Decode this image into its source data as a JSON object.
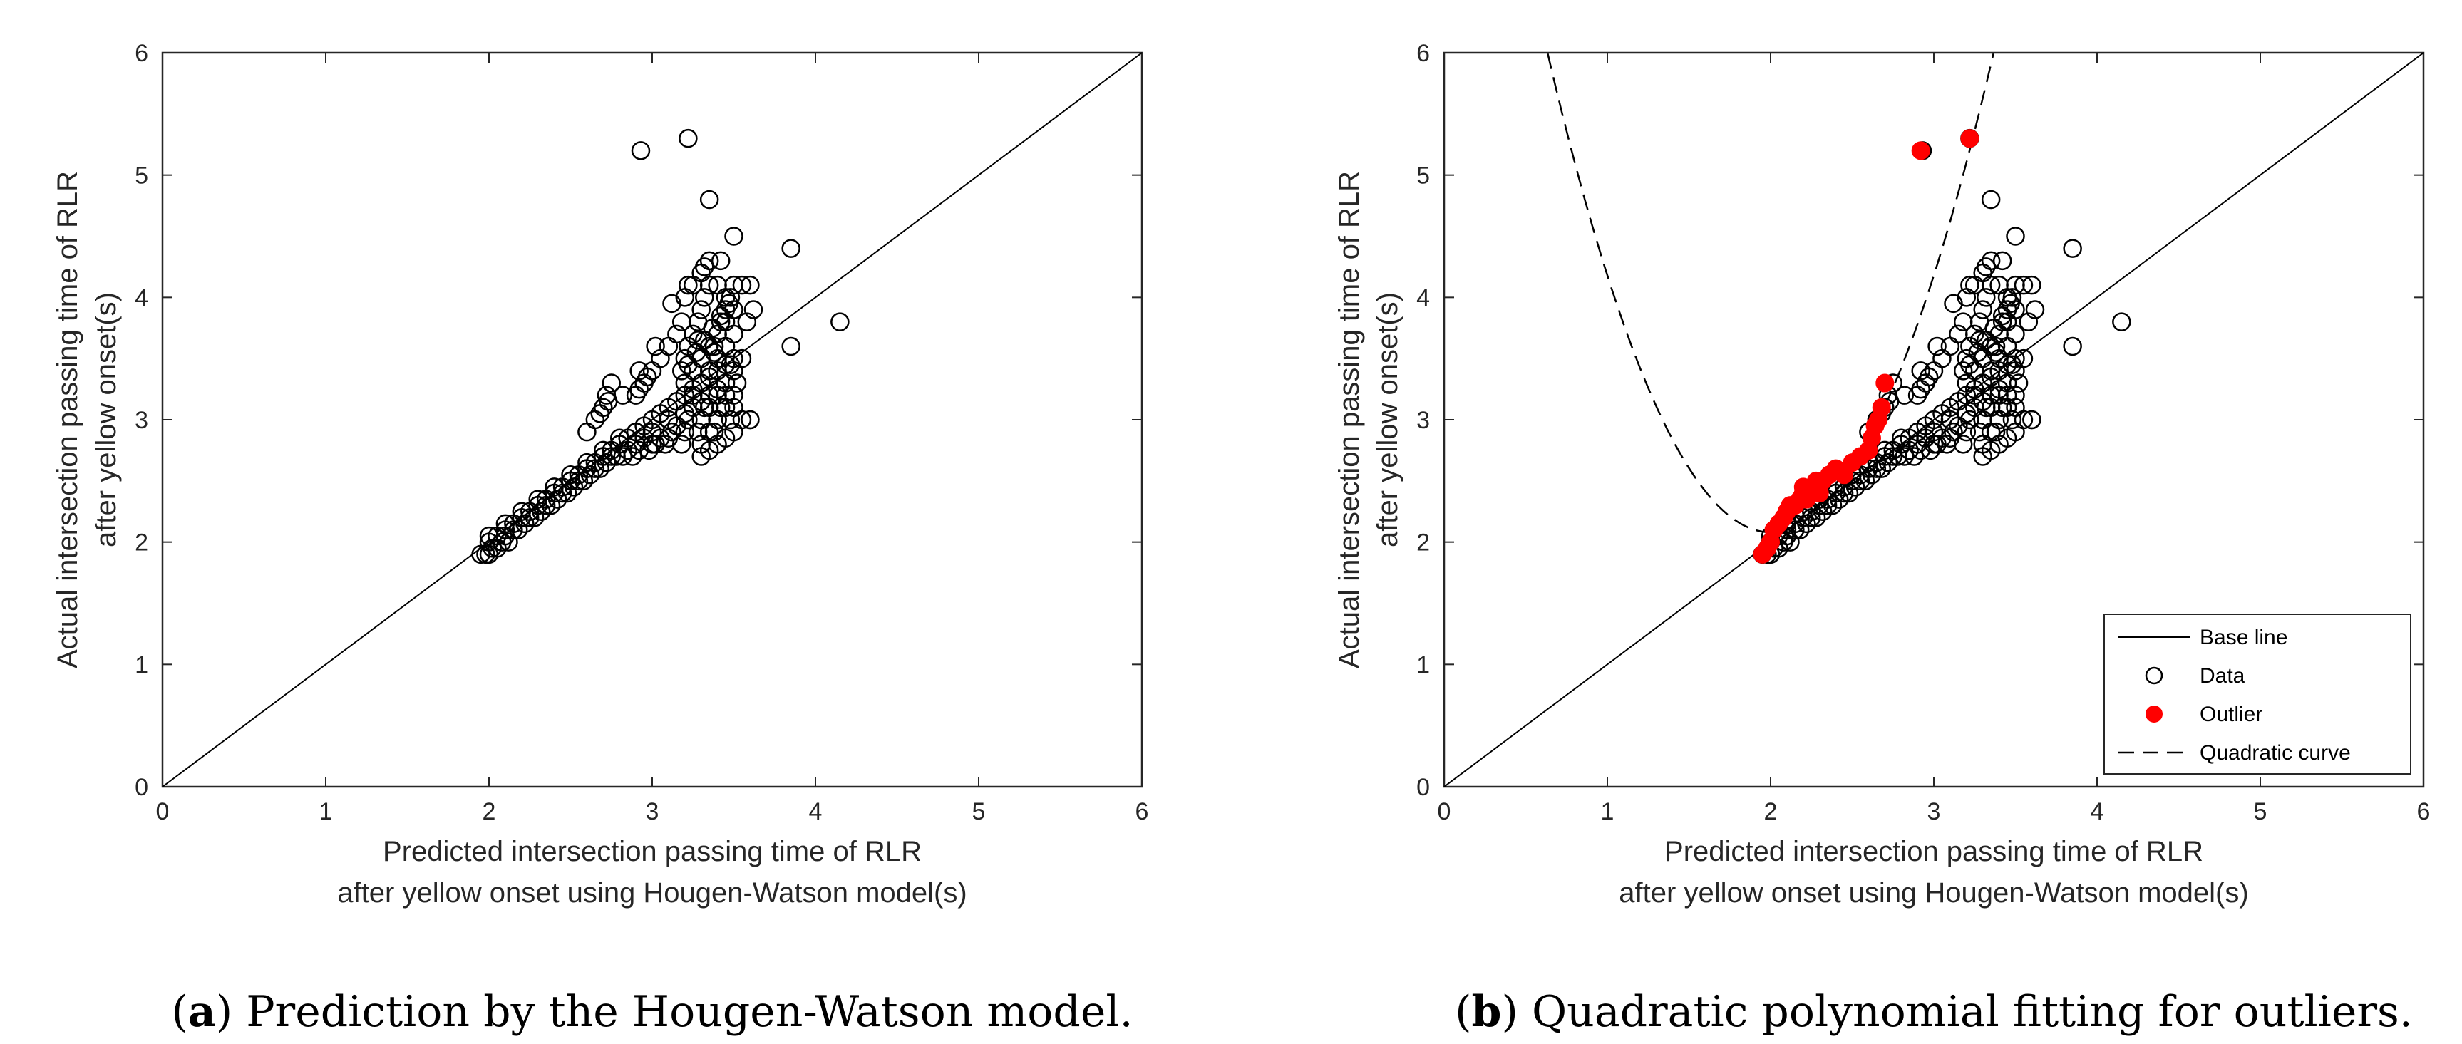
{
  "chart_data": [
    {
      "type": "scatter",
      "caption_label": "a",
      "caption_text": "Prediction by the Hougen-Watson model.",
      "xlabel": [
        "Predicted intersection passing time of RLR",
        "after yellow onset using Hougen-Watson model(s)"
      ],
      "ylabel": [
        "Actual intersection passing time of RLR",
        "after yellow onset(s)"
      ],
      "xlim": [
        0,
        6
      ],
      "ylim": [
        0,
        6
      ],
      "xticks": [
        "0",
        "1",
        "2",
        "3",
        "4",
        "5",
        "6"
      ],
      "yticks": [
        "0",
        "1",
        "2",
        "3",
        "4",
        "5",
        "6"
      ],
      "grid": false,
      "base_line": {
        "x": [
          0,
          6
        ],
        "y": [
          0,
          6
        ]
      },
      "data_points": {
        "x": [
          1.95,
          1.98,
          2.0,
          2.02,
          2.05,
          2.0,
          2.08,
          2.1,
          2.12,
          2.15,
          2.1,
          2.18,
          2.2,
          2.22,
          2.25,
          2.2,
          2.28,
          2.3,
          2.32,
          2.35,
          2.3,
          2.38,
          2.4,
          2.42,
          2.45,
          2.4,
          2.48,
          2.5,
          2.52,
          2.55,
          2.5,
          2.58,
          2.6,
          2.62,
          2.65,
          2.6,
          2.68,
          2.7,
          2.72,
          2.75,
          2.7,
          2.78,
          2.8,
          2.82,
          2.85,
          2.8,
          2.88,
          2.9,
          2.92,
          2.95,
          2.9,
          2.98,
          3.0,
          3.02,
          3.05,
          3.0,
          3.08,
          3.1,
          3.12,
          3.15,
          3.1,
          3.18,
          3.2,
          3.22,
          3.25,
          3.2,
          3.28,
          3.3,
          3.32,
          3.35,
          3.3,
          3.38,
          3.4,
          3.42,
          3.45,
          3.4,
          3.48,
          3.5,
          3.55,
          3.6,
          2.0,
          2.05,
          2.1,
          2.15,
          2.2,
          2.25,
          2.3,
          2.35,
          2.4,
          2.45,
          2.5,
          2.55,
          2.6,
          2.65,
          2.7,
          2.75,
          2.8,
          2.85,
          2.9,
          2.95,
          3.0,
          3.05,
          3.1,
          3.15,
          3.2,
          3.25,
          3.3,
          3.35,
          3.4,
          3.45,
          3.5,
          2.65,
          2.7,
          2.72,
          2.75,
          2.6,
          2.68,
          2.73,
          2.9,
          2.95,
          3.0,
          3.05,
          2.92,
          2.97,
          3.1,
          3.15,
          3.18,
          3.2,
          3.22,
          3.25,
          3.28,
          3.3,
          3.32,
          3.35,
          3.38,
          3.4,
          3.42,
          3.45,
          3.48,
          3.5,
          3.2,
          3.25,
          3.3,
          3.35,
          3.4,
          3.45,
          3.5,
          3.2,
          3.25,
          3.3,
          3.35,
          3.4,
          3.45,
          3.22,
          3.27,
          3.32,
          3.37,
          3.42,
          3.47,
          3.55,
          3.6,
          3.62,
          3.58,
          3.25,
          3.3,
          3.35,
          3.4,
          3.45,
          3.5,
          3.3,
          3.35,
          3.4,
          3.45,
          3.5,
          3.55,
          3.3,
          3.35,
          3.4,
          3.45,
          3.5,
          3.3,
          3.4,
          3.5,
          3.6,
          3.35,
          3.45,
          3.52,
          3.48,
          3.38,
          3.28,
          3.18,
          3.42,
          3.32,
          3.22,
          3.12,
          3.02,
          2.92,
          2.82,
          3.5,
          3.85,
          3.85,
          4.15,
          2.93,
          3.22,
          3.35
        ],
        "y": [
          1.9,
          1.9,
          1.9,
          1.95,
          1.95,
          2.05,
          2.0,
          2.05,
          2.0,
          2.1,
          2.15,
          2.1,
          2.2,
          2.15,
          2.2,
          2.25,
          2.2,
          2.3,
          2.25,
          2.3,
          2.35,
          2.3,
          2.4,
          2.35,
          2.4,
          2.45,
          2.4,
          2.5,
          2.45,
          2.5,
          2.55,
          2.5,
          2.6,
          2.55,
          2.6,
          2.65,
          2.6,
          2.7,
          2.65,
          2.7,
          2.75,
          2.7,
          2.8,
          2.7,
          2.75,
          2.85,
          2.7,
          2.8,
          2.75,
          2.85,
          2.9,
          2.75,
          2.8,
          2.8,
          2.85,
          2.9,
          2.8,
          2.85,
          2.9,
          2.95,
          3.0,
          2.8,
          2.9,
          3.0,
          3.1,
          3.05,
          2.9,
          3.0,
          3.1,
          3.2,
          3.15,
          2.9,
          3.0,
          3.1,
          3.2,
          3.25,
          3.0,
          3.1,
          3.0,
          3.0,
          2.0,
          2.05,
          2.1,
          2.15,
          2.2,
          2.25,
          2.3,
          2.35,
          2.4,
          2.45,
          2.5,
          2.55,
          2.6,
          2.65,
          2.7,
          2.75,
          2.8,
          2.85,
          2.9,
          2.95,
          3.0,
          3.05,
          3.1,
          3.15,
          3.2,
          3.25,
          3.3,
          3.35,
          3.4,
          3.45,
          3.5,
          3.0,
          3.1,
          3.2,
          3.3,
          2.9,
          3.05,
          3.15,
          3.2,
          3.3,
          3.4,
          3.5,
          3.25,
          3.35,
          3.6,
          3.7,
          3.4,
          3.5,
          3.6,
          3.7,
          3.8,
          3.9,
          4.0,
          4.1,
          3.6,
          3.7,
          3.8,
          3.9,
          4.0,
          4.1,
          3.3,
          3.4,
          3.5,
          3.6,
          3.7,
          3.8,
          3.9,
          4.0,
          4.1,
          4.2,
          4.3,
          4.1,
          4.0,
          3.45,
          3.55,
          3.65,
          3.75,
          3.85,
          3.95,
          4.1,
          4.1,
          3.9,
          3.8,
          3.2,
          3.3,
          3.4,
          3.5,
          3.6,
          3.7,
          3.0,
          3.1,
          3.2,
          3.3,
          3.4,
          3.5,
          2.8,
          2.9,
          3.0,
          3.1,
          3.2,
          2.7,
          2.8,
          2.9,
          3.0,
          2.75,
          2.85,
          3.3,
          3.45,
          3.55,
          3.65,
          3.8,
          4.3,
          4.25,
          4.1,
          3.95,
          3.6,
          3.4,
          3.2,
          4.5,
          4.4,
          3.6,
          3.8,
          5.2,
          5.3,
          4.8
        ]
      }
    },
    {
      "type": "scatter",
      "caption_label": "b",
      "caption_text": "Quadratic polynomial fitting for outliers.",
      "xlabel": [
        "Predicted intersection passing time of RLR",
        "after yellow onset using Hougen-Watson model(s)"
      ],
      "ylabel": [
        "Actual intersection passing time of RLR",
        "after yellow onset(s)"
      ],
      "xlim": [
        0,
        6
      ],
      "ylim": [
        0,
        6
      ],
      "xticks": [
        "0",
        "1",
        "2",
        "3",
        "4",
        "5",
        "6"
      ],
      "yticks": [
        "0",
        "1",
        "2",
        "3",
        "4",
        "5",
        "6"
      ],
      "grid": false,
      "legend_position": "bottom-right",
      "legend": [
        "Base line",
        "Data",
        "Outlier",
        "Quadratic curve"
      ],
      "base_line": {
        "x": [
          0,
          6
        ],
        "y": [
          0,
          6
        ]
      },
      "quadratic_curve": {
        "vertex_x": 2.0,
        "vertex_y": 2.08,
        "a": 2.1
      },
      "outliers": {
        "x": [
          1.95,
          1.98,
          2.0,
          2.02,
          2.05,
          2.08,
          2.1,
          2.12,
          2.15,
          2.18,
          2.2,
          2.22,
          2.25,
          2.28,
          2.32,
          2.36,
          2.4,
          2.45,
          2.5,
          2.55,
          2.6,
          2.62,
          2.64,
          2.66,
          2.68,
          2.7,
          2.2,
          2.3,
          2.92,
          3.22
        ],
        "y": [
          1.9,
          1.95,
          2.0,
          2.1,
          2.15,
          2.2,
          2.25,
          2.3,
          2.3,
          2.35,
          2.4,
          2.35,
          2.45,
          2.5,
          2.5,
          2.55,
          2.6,
          2.55,
          2.65,
          2.7,
          2.75,
          2.85,
          2.95,
          3.0,
          3.1,
          3.3,
          2.45,
          2.4,
          5.2,
          5.3
        ]
      }
    }
  ]
}
